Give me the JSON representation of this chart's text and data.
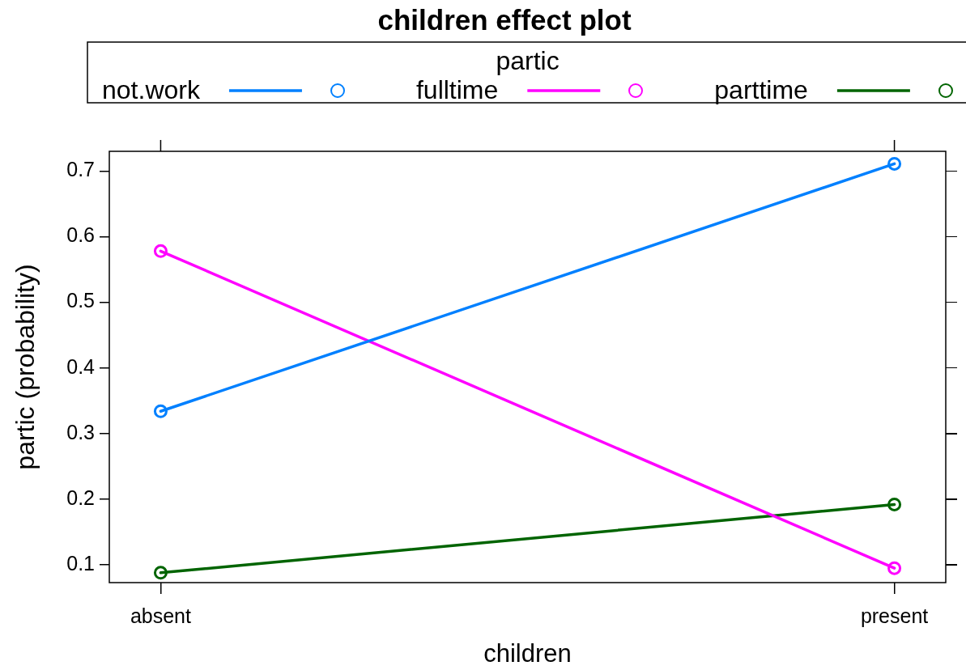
{
  "chart_data": {
    "type": "line",
    "title": "children effect plot",
    "xlabel": "children",
    "ylabel": "partic (probability)",
    "legend_title": "partic",
    "legend": "top",
    "marker": "circle",
    "grid": false,
    "categories": [
      "absent",
      "present"
    ],
    "series": [
      {
        "name": "not.work",
        "color": "#0080ff",
        "values": [
          0.334,
          0.711
        ]
      },
      {
        "name": "fulltime",
        "color": "#ff00ff",
        "values": [
          0.578,
          0.095
        ]
      },
      {
        "name": "parttime",
        "color": "#006400",
        "values": [
          0.088,
          0.192
        ]
      }
    ],
    "ylim": [
      0.073,
      0.73
    ],
    "yticks": [
      0.1,
      0.2,
      0.3,
      0.4,
      0.5,
      0.6,
      0.7
    ]
  }
}
